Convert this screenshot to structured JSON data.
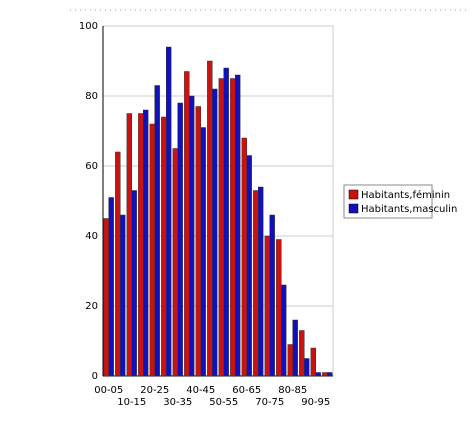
{
  "chart_data": {
    "type": "bar",
    "categories": [
      "00-05",
      null,
      "10-15",
      null,
      "20-25",
      null,
      "30-35",
      null,
      "40-45",
      null,
      "50-55",
      null,
      "60-65",
      null,
      "70-75",
      null,
      "80-85",
      null,
      "90-95",
      null
    ],
    "series": [
      {
        "name": "Habitants,féminin",
        "color": "#cc1111",
        "values": [
          45,
          64,
          75,
          75,
          72,
          74,
          65,
          87,
          77,
          90,
          85,
          85,
          68,
          53,
          40,
          39,
          9,
          13,
          8,
          1
        ]
      },
      {
        "name": "Habitants,masculin",
        "color": "#1111bb",
        "values": [
          51,
          46,
          53,
          76,
          83,
          94,
          78,
          80,
          71,
          82,
          88,
          86,
          63,
          54,
          46,
          26,
          16,
          5,
          1,
          1
        ]
      }
    ],
    "ylim": [
      0,
      100
    ],
    "yticks": [
      0,
      20,
      40,
      60,
      80,
      100
    ],
    "grid": true
  }
}
